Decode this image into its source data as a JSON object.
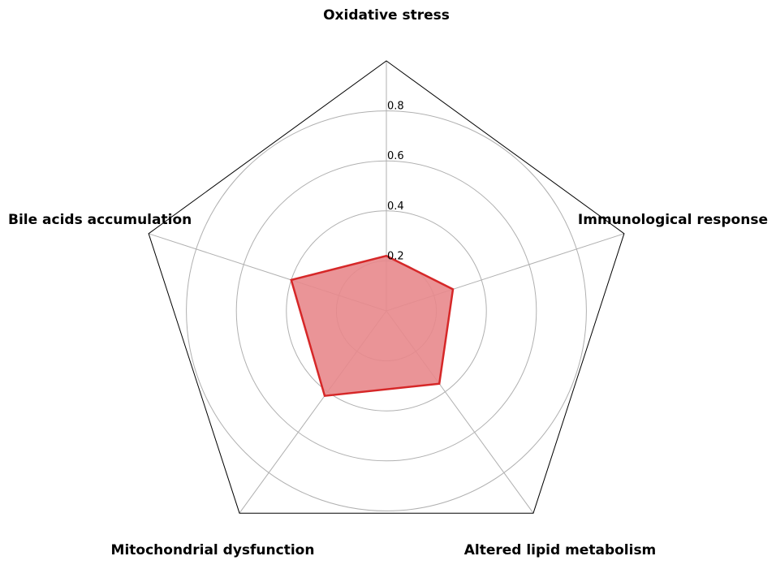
{
  "chart_data": {
    "type": "radar",
    "axes": [
      "Oxidative stress",
      "Immunological response",
      "Altered lipid metabolism",
      "Mitochondrial dysfunction",
      "Bile acids accumulation"
    ],
    "series": [
      {
        "values": [
          0.22,
          0.28,
          0.36,
          0.42,
          0.4
        ]
      }
    ],
    "rlim": [
      0,
      1.0
    ],
    "rticks": [
      0.2,
      0.4,
      0.6,
      0.8
    ],
    "rtick_labels": [
      "0.2",
      "0.4",
      "0.6",
      "0.8"
    ],
    "grid": true,
    "colors": {
      "line": "#d62728",
      "fill": "#e8888c",
      "grid": "#b0b0b0",
      "frame": "#000000"
    }
  }
}
